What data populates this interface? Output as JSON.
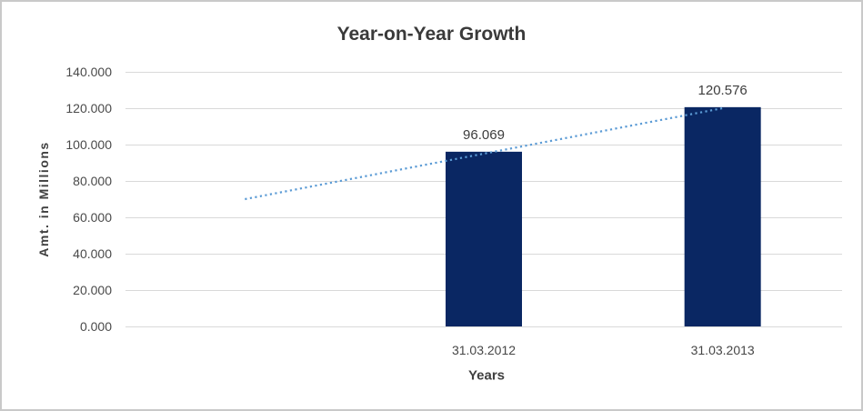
{
  "chart_data": {
    "type": "bar",
    "title": "Year-on-Year Growth",
    "xlabel": "Years",
    "ylabel": "Amt. in Millions",
    "categories": [
      "31.03.2012",
      "31.03.2013"
    ],
    "values": [
      96.069,
      120.576
    ],
    "data_labels": [
      "96.069",
      "120.576"
    ],
    "ylim": [
      0,
      140
    ],
    "ytick_step": 20,
    "ytick_labels": [
      "0.000",
      "20.000",
      "40.000",
      "60.000",
      "80.000",
      "100.000",
      "120.000",
      "140.000"
    ],
    "grid": true,
    "legend": "none",
    "slot_count": 3,
    "category_slots": [
      1,
      2
    ],
    "trendline": {
      "style": "dotted",
      "start_slot": 0,
      "end_slot": 2,
      "start_value": 70,
      "end_value": 120
    },
    "colors": {
      "bar": "#0a2763",
      "trendline": "#5b9bd5",
      "gridline": "#d9d9d9",
      "title_text": "#3a3a3a",
      "axis_text": "#4a4a4a"
    }
  }
}
